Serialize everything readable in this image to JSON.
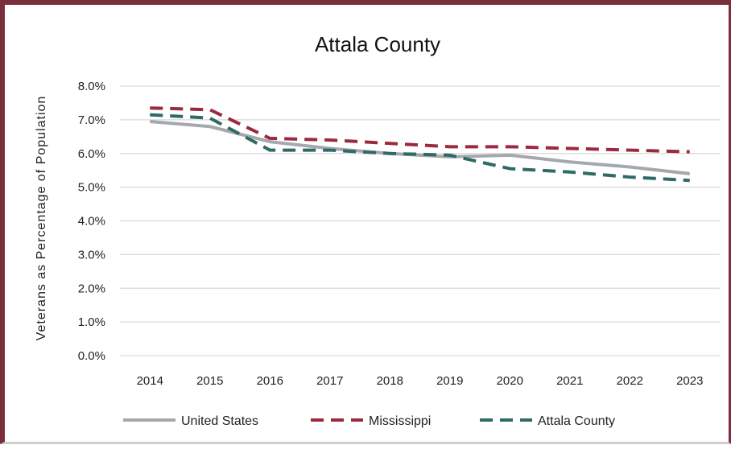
{
  "chart_data": {
    "type": "line",
    "title": "Attala County",
    "xlabel": "",
    "ylabel": "Veterans as Percentage of Population",
    "x": [
      "2014",
      "2015",
      "2016",
      "2017",
      "2018",
      "2019",
      "2020",
      "2021",
      "2022",
      "2023"
    ],
    "y_ticks": [
      "0.0%",
      "1.0%",
      "2.0%",
      "3.0%",
      "4.0%",
      "5.0%",
      "6.0%",
      "7.0%",
      "8.0%"
    ],
    "ylim": [
      0,
      8
    ],
    "grid": "horizontal",
    "legend_position": "bottom",
    "series": [
      {
        "name": "United States",
        "color": "#a5a8ad",
        "dash": "solid",
        "values": [
          6.95,
          6.8,
          6.35,
          6.15,
          6.0,
          5.9,
          5.95,
          5.75,
          5.6,
          5.4
        ]
      },
      {
        "name": "Mississippi",
        "color": "#9b2a3e",
        "dash": "dashed",
        "values": [
          7.35,
          7.3,
          6.45,
          6.4,
          6.3,
          6.2,
          6.2,
          6.15,
          6.1,
          6.05
        ]
      },
      {
        "name": "Attala County",
        "color": "#2f6b66",
        "dash": "dashed",
        "values": [
          7.15,
          7.05,
          6.1,
          6.1,
          6.0,
          5.95,
          5.55,
          5.45,
          5.3,
          5.2
        ]
      }
    ]
  }
}
